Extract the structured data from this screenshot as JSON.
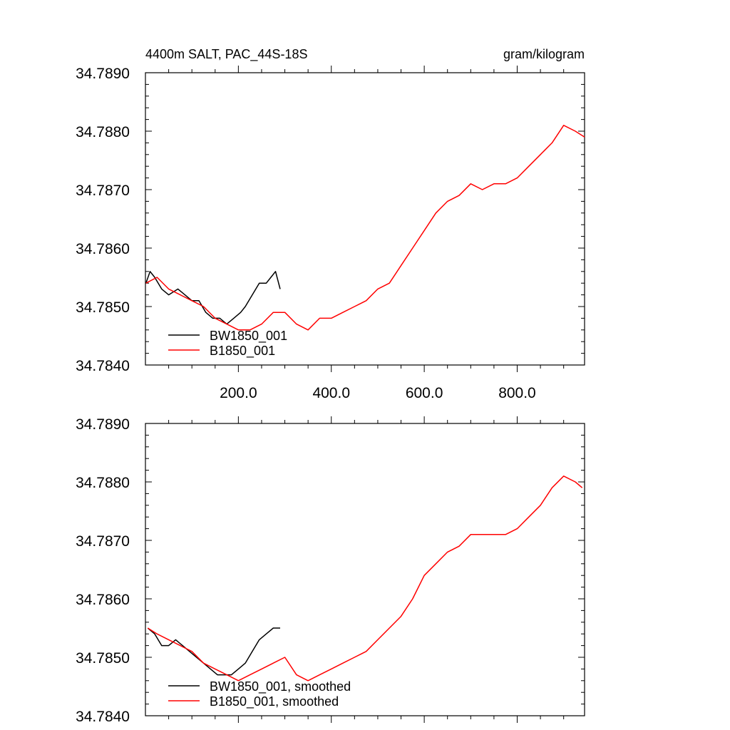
{
  "header": {
    "title": "4400m SALT, PAC_44S-18S",
    "units": "gram/kilogram"
  },
  "chart_data": [
    {
      "type": "line",
      "panel": "top",
      "xlim": [
        0,
        945
      ],
      "ylim": [
        34.784,
        34.789
      ],
      "x_ticks": [
        200,
        400,
        600,
        800
      ],
      "x_tick_labels": [
        "200.0",
        "400.0",
        "600.0",
        "800.0"
      ],
      "y_ticks": [
        34.784,
        34.785,
        34.786,
        34.787,
        34.788,
        34.789
      ],
      "y_tick_labels": [
        "34.7840",
        "34.7850",
        "34.7860",
        "34.7870",
        "34.7880",
        "34.7890"
      ],
      "legend_position": "bottom-left",
      "series": [
        {
          "name": "BW1850_001",
          "color": "#000000",
          "x": [
            1,
            10,
            20,
            35,
            50,
            70,
            85,
            100,
            115,
            130,
            145,
            160,
            175,
            190,
            205,
            215,
            230,
            245,
            260,
            270,
            280,
            290
          ],
          "y": [
            34.7854,
            34.7856,
            34.7855,
            34.7853,
            34.7852,
            34.7853,
            34.7852,
            34.7851,
            34.7851,
            34.7849,
            34.7848,
            34.7848,
            34.7847,
            34.7848,
            34.7849,
            34.785,
            34.7852,
            34.7854,
            34.7854,
            34.7855,
            34.7856,
            34.7853
          ]
        },
        {
          "name": "B1850_001",
          "color": "#ff0000",
          "x": [
            1,
            25,
            50,
            75,
            100,
            125,
            150,
            175,
            200,
            225,
            250,
            275,
            300,
            325,
            350,
            375,
            400,
            425,
            450,
            475,
            500,
            525,
            550,
            575,
            600,
            625,
            650,
            675,
            700,
            725,
            750,
            775,
            800,
            825,
            850,
            875,
            900,
            925,
            945
          ],
          "y": [
            34.7854,
            34.7855,
            34.7853,
            34.7852,
            34.7851,
            34.785,
            34.7848,
            34.7847,
            34.7846,
            34.7846,
            34.7847,
            34.7849,
            34.7849,
            34.7847,
            34.7846,
            34.7848,
            34.7848,
            34.7849,
            34.785,
            34.7851,
            34.7853,
            34.7854,
            34.7857,
            34.786,
            34.7863,
            34.7866,
            34.7868,
            34.7869,
            34.7871,
            34.787,
            34.7871,
            34.7871,
            34.7872,
            34.7874,
            34.7876,
            34.7878,
            34.7881,
            34.788,
            34.7879
          ]
        }
      ]
    },
    {
      "type": "line",
      "panel": "bottom",
      "xlim": [
        0,
        945
      ],
      "ylim": [
        34.784,
        34.789
      ],
      "x_ticks": [
        200,
        400,
        600,
        800
      ],
      "y_ticks": [
        34.784,
        34.785,
        34.786,
        34.787,
        34.788,
        34.789
      ],
      "y_tick_labels": [
        "34.7840",
        "34.7850",
        "34.7860",
        "34.7870",
        "34.7880",
        "34.7890"
      ],
      "legend_position": "bottom-left",
      "series": [
        {
          "name": "BW1850_001, smoothed",
          "color": "#000000",
          "x": [
            5,
            20,
            35,
            50,
            65,
            80,
            95,
            110,
            125,
            140,
            155,
            170,
            185,
            200,
            215,
            230,
            245,
            260,
            275,
            290
          ],
          "y": [
            34.7855,
            34.7854,
            34.7852,
            34.7852,
            34.7853,
            34.7852,
            34.7851,
            34.785,
            34.7849,
            34.7848,
            34.7847,
            34.7847,
            34.7847,
            34.7848,
            34.7849,
            34.7851,
            34.7853,
            34.7854,
            34.7855,
            34.7855
          ]
        },
        {
          "name": "B1850_001, smoothed",
          "color": "#ff0000",
          "x": [
            5,
            25,
            50,
            75,
            100,
            125,
            150,
            175,
            200,
            225,
            250,
            275,
            300,
            325,
            350,
            375,
            400,
            425,
            450,
            475,
            500,
            525,
            550,
            575,
            600,
            625,
            650,
            675,
            700,
            725,
            750,
            775,
            800,
            825,
            850,
            875,
            900,
            925,
            940
          ],
          "y": [
            34.7855,
            34.7854,
            34.7853,
            34.7852,
            34.7851,
            34.7849,
            34.7848,
            34.7847,
            34.7846,
            34.7847,
            34.7848,
            34.7849,
            34.785,
            34.7847,
            34.7846,
            34.7847,
            34.7848,
            34.7849,
            34.785,
            34.7851,
            34.7853,
            34.7855,
            34.7857,
            34.786,
            34.7864,
            34.7866,
            34.7868,
            34.7869,
            34.7871,
            34.7871,
            34.7871,
            34.7871,
            34.7872,
            34.7874,
            34.7876,
            34.7879,
            34.7881,
            34.788,
            34.7879
          ]
        }
      ]
    }
  ]
}
